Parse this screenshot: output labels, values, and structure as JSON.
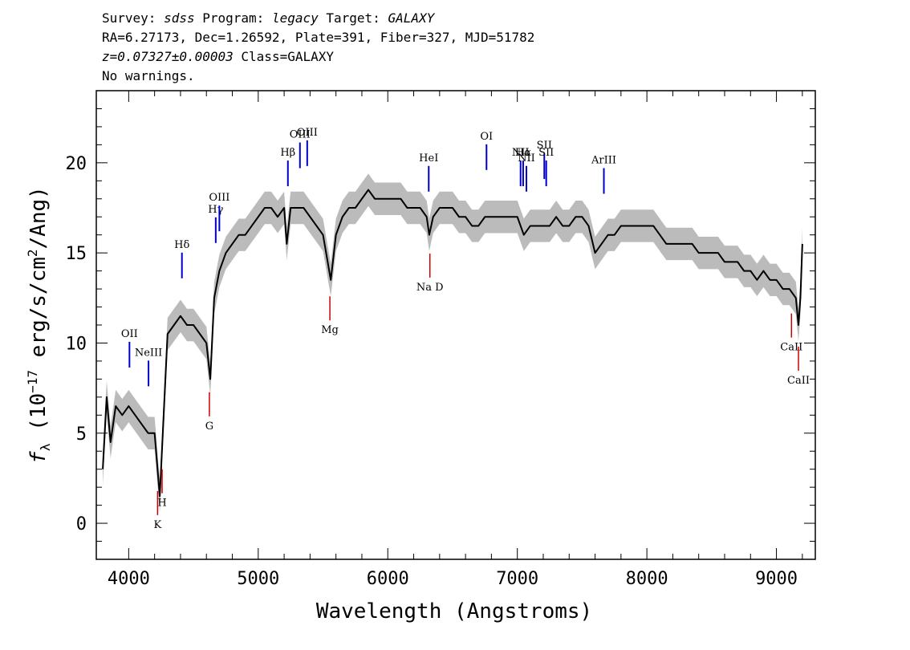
{
  "header": {
    "line1": {
      "survey_label": "Survey:",
      "survey": "sdss",
      "program_label": "Program:",
      "program": "legacy",
      "target_label": "Target:",
      "target": "GALAXY"
    },
    "line2": "RA=6.27173, Dec=1.26592, Plate=391, Fiber=327, MJD=51782",
    "line3": {
      "z_value": "z=0.07327±0.00003",
      "class_text": "Class=GALAXY"
    },
    "line4": "No warnings."
  },
  "chart_data": {
    "type": "line",
    "title": "",
    "xlabel": "Wavelength (Angstroms)",
    "ylabel_prefix": "f",
    "ylabel_sub": "λ",
    "ylabel_main": " (10",
    "ylabel_exp": "−17",
    "ylabel_rest": " erg/s/cm",
    "ylabel_exp2": "2",
    "ylabel_end": "/Ang)",
    "xlim": [
      3750,
      9300
    ],
    "ylim": [
      -2,
      24
    ],
    "x_ticks": [
      4000,
      5000,
      6000,
      7000,
      8000,
      9000
    ],
    "x_tick_labels": [
      "4000",
      "5000",
      "6000",
      "7000",
      "8000",
      "9000"
    ],
    "y_ticks": [
      0,
      5,
      10,
      15,
      20
    ],
    "y_tick_labels": [
      "0",
      "5",
      "10",
      "15",
      "20"
    ],
    "grid": false,
    "series": [
      {
        "role": "spectrum",
        "color": "#000000",
        "points": [
          [
            3800,
            3.0
          ],
          [
            3830,
            7.0
          ],
          [
            3860,
            4.5
          ],
          [
            3900,
            6.5
          ],
          [
            3950,
            6.0
          ],
          [
            4000,
            6.5
          ],
          [
            4050,
            6.0
          ],
          [
            4100,
            5.5
          ],
          [
            4150,
            5.0
          ],
          [
            4200,
            5.0
          ],
          [
            4240,
            1.5
          ],
          [
            4270,
            6.0
          ],
          [
            4300,
            10.5
          ],
          [
            4350,
            11.0
          ],
          [
            4400,
            11.5
          ],
          [
            4450,
            11.0
          ],
          [
            4500,
            11.0
          ],
          [
            4550,
            10.5
          ],
          [
            4600,
            10.0
          ],
          [
            4630,
            8.0
          ],
          [
            4660,
            12.5
          ],
          [
            4700,
            14.0
          ],
          [
            4750,
            15.0
          ],
          [
            4800,
            15.5
          ],
          [
            4850,
            16.0
          ],
          [
            4900,
            16.0
          ],
          [
            4950,
            16.5
          ],
          [
            5000,
            17.0
          ],
          [
            5050,
            17.5
          ],
          [
            5100,
            17.5
          ],
          [
            5150,
            17.0
          ],
          [
            5200,
            17.5
          ],
          [
            5220,
            15.5
          ],
          [
            5250,
            17.5
          ],
          [
            5300,
            17.5
          ],
          [
            5350,
            17.5
          ],
          [
            5400,
            17.0
          ],
          [
            5450,
            16.5
          ],
          [
            5500,
            16.0
          ],
          [
            5560,
            13.5
          ],
          [
            5600,
            16.0
          ],
          [
            5650,
            17.0
          ],
          [
            5700,
            17.5
          ],
          [
            5750,
            17.5
          ],
          [
            5800,
            18.0
          ],
          [
            5850,
            18.5
          ],
          [
            5900,
            18.0
          ],
          [
            5950,
            18.0
          ],
          [
            6000,
            18.0
          ],
          [
            6050,
            18.0
          ],
          [
            6100,
            18.0
          ],
          [
            6150,
            17.5
          ],
          [
            6200,
            17.5
          ],
          [
            6250,
            17.5
          ],
          [
            6300,
            17.0
          ],
          [
            6320,
            16.0
          ],
          [
            6350,
            17.0
          ],
          [
            6400,
            17.5
          ],
          [
            6450,
            17.5
          ],
          [
            6500,
            17.5
          ],
          [
            6550,
            17.0
          ],
          [
            6600,
            17.0
          ],
          [
            6650,
            16.5
          ],
          [
            6700,
            16.5
          ],
          [
            6750,
            17.0
          ],
          [
            6800,
            17.0
          ],
          [
            6850,
            17.0
          ],
          [
            6900,
            17.0
          ],
          [
            6950,
            17.0
          ],
          [
            7000,
            17.0
          ],
          [
            7050,
            16.0
          ],
          [
            7100,
            16.5
          ],
          [
            7150,
            16.5
          ],
          [
            7200,
            16.5
          ],
          [
            7250,
            16.5
          ],
          [
            7300,
            17.0
          ],
          [
            7350,
            16.5
          ],
          [
            7400,
            16.5
          ],
          [
            7450,
            17.0
          ],
          [
            7500,
            17.0
          ],
          [
            7550,
            16.5
          ],
          [
            7600,
            15.0
          ],
          [
            7650,
            15.5
          ],
          [
            7700,
            16.0
          ],
          [
            7750,
            16.0
          ],
          [
            7800,
            16.5
          ],
          [
            7850,
            16.5
          ],
          [
            7900,
            16.5
          ],
          [
            7950,
            16.5
          ],
          [
            8000,
            16.5
          ],
          [
            8050,
            16.5
          ],
          [
            8100,
            16.0
          ],
          [
            8150,
            15.5
          ],
          [
            8200,
            15.5
          ],
          [
            8250,
            15.5
          ],
          [
            8300,
            15.5
          ],
          [
            8350,
            15.5
          ],
          [
            8400,
            15.0
          ],
          [
            8450,
            15.0
          ],
          [
            8500,
            15.0
          ],
          [
            8550,
            15.0
          ],
          [
            8600,
            14.5
          ],
          [
            8650,
            14.5
          ],
          [
            8700,
            14.5
          ],
          [
            8750,
            14.0
          ],
          [
            8800,
            14.0
          ],
          [
            8850,
            13.5
          ],
          [
            8900,
            14.0
          ],
          [
            8950,
            13.5
          ],
          [
            9000,
            13.5
          ],
          [
            9050,
            13.0
          ],
          [
            9100,
            13.0
          ],
          [
            9150,
            12.5
          ],
          [
            9170,
            11.0
          ],
          [
            9185,
            12.5
          ],
          [
            9200,
            15.5
          ]
        ]
      },
      {
        "role": "error band",
        "color": "#bbbbbb",
        "half_width": 0.9
      }
    ],
    "emission_lines": [
      {
        "label": "OII",
        "x": 4006
      },
      {
        "label": "NeIII",
        "x": 4153
      },
      {
        "label": "Hδ",
        "x": 4411
      },
      {
        "label": "Hγ",
        "x": 4672
      },
      {
        "label": "OIII",
        "x": 4700
      },
      {
        "label": "Hβ",
        "x": 5229
      },
      {
        "label": "OIII",
        "x": 5322
      },
      {
        "label": "OIII",
        "x": 5378
      },
      {
        "label": "HeI",
        "x": 6316
      },
      {
        "label": "OI",
        "x": 6762
      },
      {
        "label": "NII",
        "x": 7025
      },
      {
        "label": "Hα",
        "x": 7045
      },
      {
        "label": "NII",
        "x": 7070
      },
      {
        "label": "SII",
        "x": 7208
      },
      {
        "label": "SII",
        "x": 7223
      },
      {
        "label": "ArIII",
        "x": 7668
      }
    ],
    "absorption_lines": [
      {
        "label": "K",
        "x": 4223
      },
      {
        "label": "H",
        "x": 4258
      },
      {
        "label": "G",
        "x": 4623
      },
      {
        "label": "Mg",
        "x": 5553
      },
      {
        "label": "Na D",
        "x": 6325
      },
      {
        "label": "CaII",
        "x": 9116
      },
      {
        "label": "CaII",
        "x": 9170
      }
    ],
    "emission_color": "#0000cc",
    "absorption_color": "#cc0000"
  }
}
